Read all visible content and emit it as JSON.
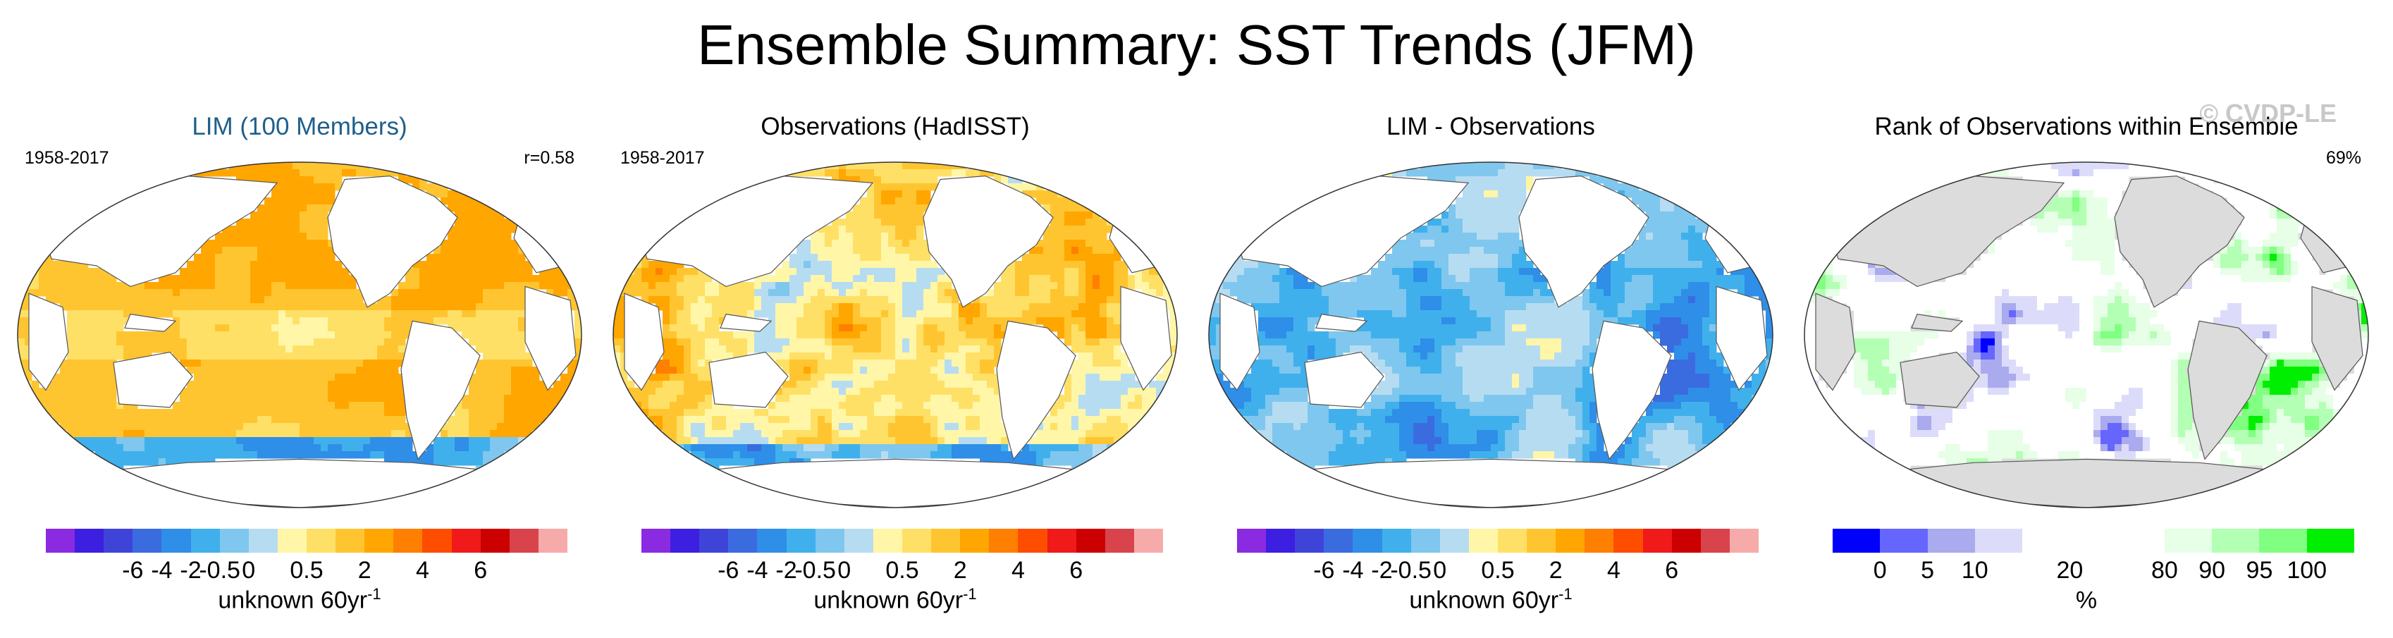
{
  "title": "Ensemble Summary: SST Trends (JFM)",
  "watermark": "© CVDP-LE",
  "colors": {
    "diverging": [
      "#8a2be2",
      "#3c1fe0",
      "#3f44d9",
      "#3a6ce0",
      "#2f8ee8",
      "#3fb0ec",
      "#7fc7ee",
      "#b6dcf2",
      "#fff6a8",
      "#ffe066",
      "#ffc530",
      "#ffa600",
      "#ff7f00",
      "#ff4d00",
      "#f01a1a",
      "#cc0000",
      "#d9434b",
      "#f7aaaa"
    ],
    "rank": [
      "#0000ff",
      "#6666ff",
      "#aaaaee",
      "#dcdcfa",
      "#ffffff",
      "#ffffff",
      "#ffffff",
      "#e6ffe6",
      "#b3ffb3",
      "#80ff80",
      "#00ee00"
    ],
    "land": "#ffffff",
    "rank_land": "#dcdcdc",
    "title_blue": "#1f5f8b"
  },
  "panels": [
    {
      "title": "LIM (100 Members)",
      "period": "1958-2017",
      "stat": "r=0.58",
      "field": "lim",
      "colorbar": {
        "labels": [
          "-6",
          "-4",
          "-2",
          "-0.5",
          "0",
          "0.5",
          "2",
          "4",
          "6"
        ],
        "units": "unknown 60yr",
        "units_sup": "-1"
      }
    },
    {
      "title": "Observations (HadISST)",
      "period": "1958-2017",
      "stat": "",
      "field": "obs",
      "colorbar": {
        "labels": [
          "-6",
          "-4",
          "-2",
          "-0.5",
          "0",
          "0.5",
          "2",
          "4",
          "6"
        ],
        "units": "unknown 60yr",
        "units_sup": "-1"
      }
    },
    {
      "title": "LIM - Observations",
      "period": "",
      "stat": "",
      "field": "diff",
      "colorbar": {
        "labels": [
          "-6",
          "-4",
          "-2",
          "-0.5",
          "0",
          "0.5",
          "2",
          "4",
          "6"
        ],
        "units": "unknown 60yr",
        "units_sup": "-1"
      }
    },
    {
      "title": "Rank of Observations within Ensemble",
      "period": "",
      "stat": "69%",
      "field": "rank",
      "colorbar": {
        "labels": [
          "0",
          "5",
          "10",
          "20",
          "80",
          "90",
          "95",
          "100"
        ],
        "units": "%",
        "units_sup": ""
      }
    }
  ]
}
